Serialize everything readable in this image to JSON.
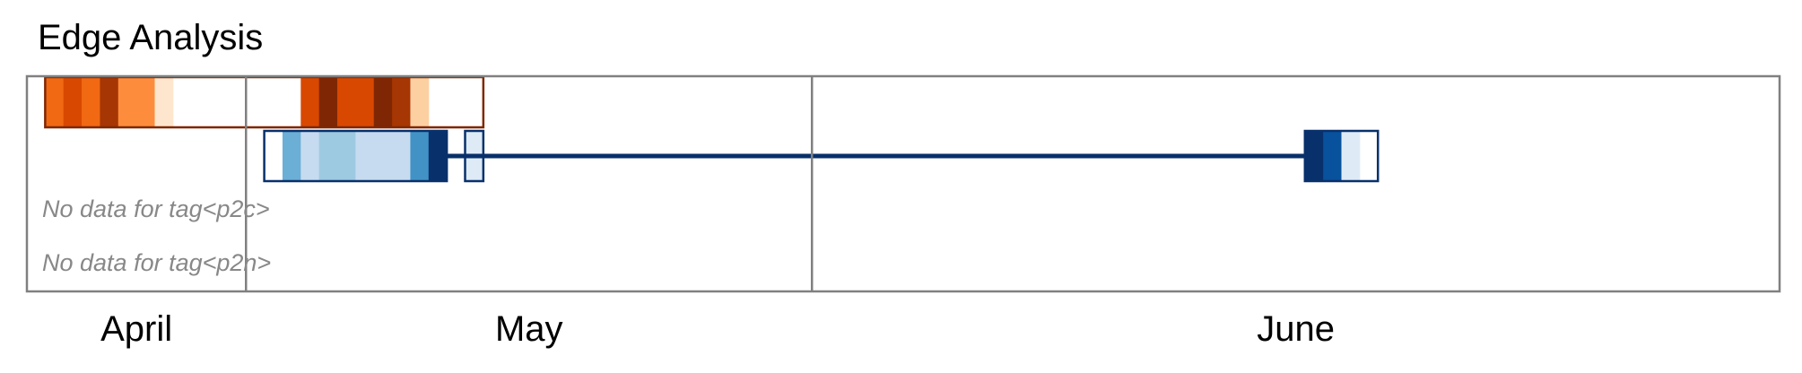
{
  "chart_data": {
    "type": "heatmap",
    "title": "Edge Analysis",
    "x_axis": {
      "unit": "day",
      "range": [
        "2021-03-26",
        "2021-06-30"
      ],
      "months": [
        {
          "label": "April",
          "start": "2021-03-26",
          "end": "2021-04-07"
        },
        {
          "label": "May",
          "start": "2021-04-07",
          "end": "2021-05-08"
        },
        {
          "label": "June",
          "start": "2021-05-08",
          "end": "2021-06-30"
        }
      ]
    },
    "rows": [
      {
        "tag": "row1",
        "color_scale": "Oranges",
        "outline": "#7f2704",
        "range": [
          "2021-03-27",
          "2021-04-20"
        ],
        "cells": [
          {
            "date": "2021-03-27",
            "level": 5
          },
          {
            "date": "2021-03-28",
            "level": 6
          },
          {
            "date": "2021-03-29",
            "level": 5
          },
          {
            "date": "2021-03-30",
            "level": 7
          },
          {
            "date": "2021-03-31",
            "level": 4
          },
          {
            "date": "2021-04-01",
            "level": 4
          },
          {
            "date": "2021-04-02",
            "level": 1
          },
          {
            "date": "2021-04-10",
            "level": 6
          },
          {
            "date": "2021-04-11",
            "level": 8
          },
          {
            "date": "2021-04-12",
            "level": 6
          },
          {
            "date": "2021-04-13",
            "level": 6
          },
          {
            "date": "2021-04-14",
            "level": 8
          },
          {
            "date": "2021-04-15",
            "level": 7
          },
          {
            "date": "2021-04-16",
            "level": 2
          }
        ]
      },
      {
        "tag": "row2",
        "color_scale": "Blues",
        "outline": "#08306b",
        "ranges": [
          [
            "2021-04-08",
            "2021-04-18"
          ],
          [
            "2021-04-19",
            "2021-04-20"
          ],
          [
            "2021-06-04",
            "2021-06-08"
          ]
        ],
        "connector": [
          "2021-04-18",
          "2021-06-04"
        ],
        "cells": [
          {
            "date": "2021-04-09",
            "level": 4
          },
          {
            "date": "2021-04-10",
            "level": 2
          },
          {
            "date": "2021-04-11",
            "level": 3
          },
          {
            "date": "2021-04-12",
            "level": 3
          },
          {
            "date": "2021-04-13",
            "level": 2
          },
          {
            "date": "2021-04-14",
            "level": 2
          },
          {
            "date": "2021-04-15",
            "level": 2
          },
          {
            "date": "2021-04-16",
            "level": 5
          },
          {
            "date": "2021-04-17",
            "level": 8
          },
          {
            "date": "2021-04-19",
            "level": 1
          },
          {
            "date": "2021-06-04",
            "level": 8
          },
          {
            "date": "2021-06-05",
            "level": 7
          },
          {
            "date": "2021-06-06",
            "level": 1
          }
        ]
      }
    ],
    "no_data_messages": [
      "No data for tag<p2c>",
      "No data for tag<p2n>"
    ],
    "palettes": {
      "Oranges": [
        "#fff5eb",
        "#fee6ce",
        "#fdd0a2",
        "#fdae6b",
        "#fd8d3c",
        "#f16913",
        "#d94801",
        "#a63603",
        "#7f2704"
      ],
      "Blues": [
        "#f7fbff",
        "#deebf7",
        "#c6dbef",
        "#9ecae1",
        "#6baed6",
        "#4292c6",
        "#2171b5",
        "#08519c",
        "#08306b"
      ]
    },
    "frame_color": "#808080",
    "grid": false,
    "legend": "none"
  }
}
